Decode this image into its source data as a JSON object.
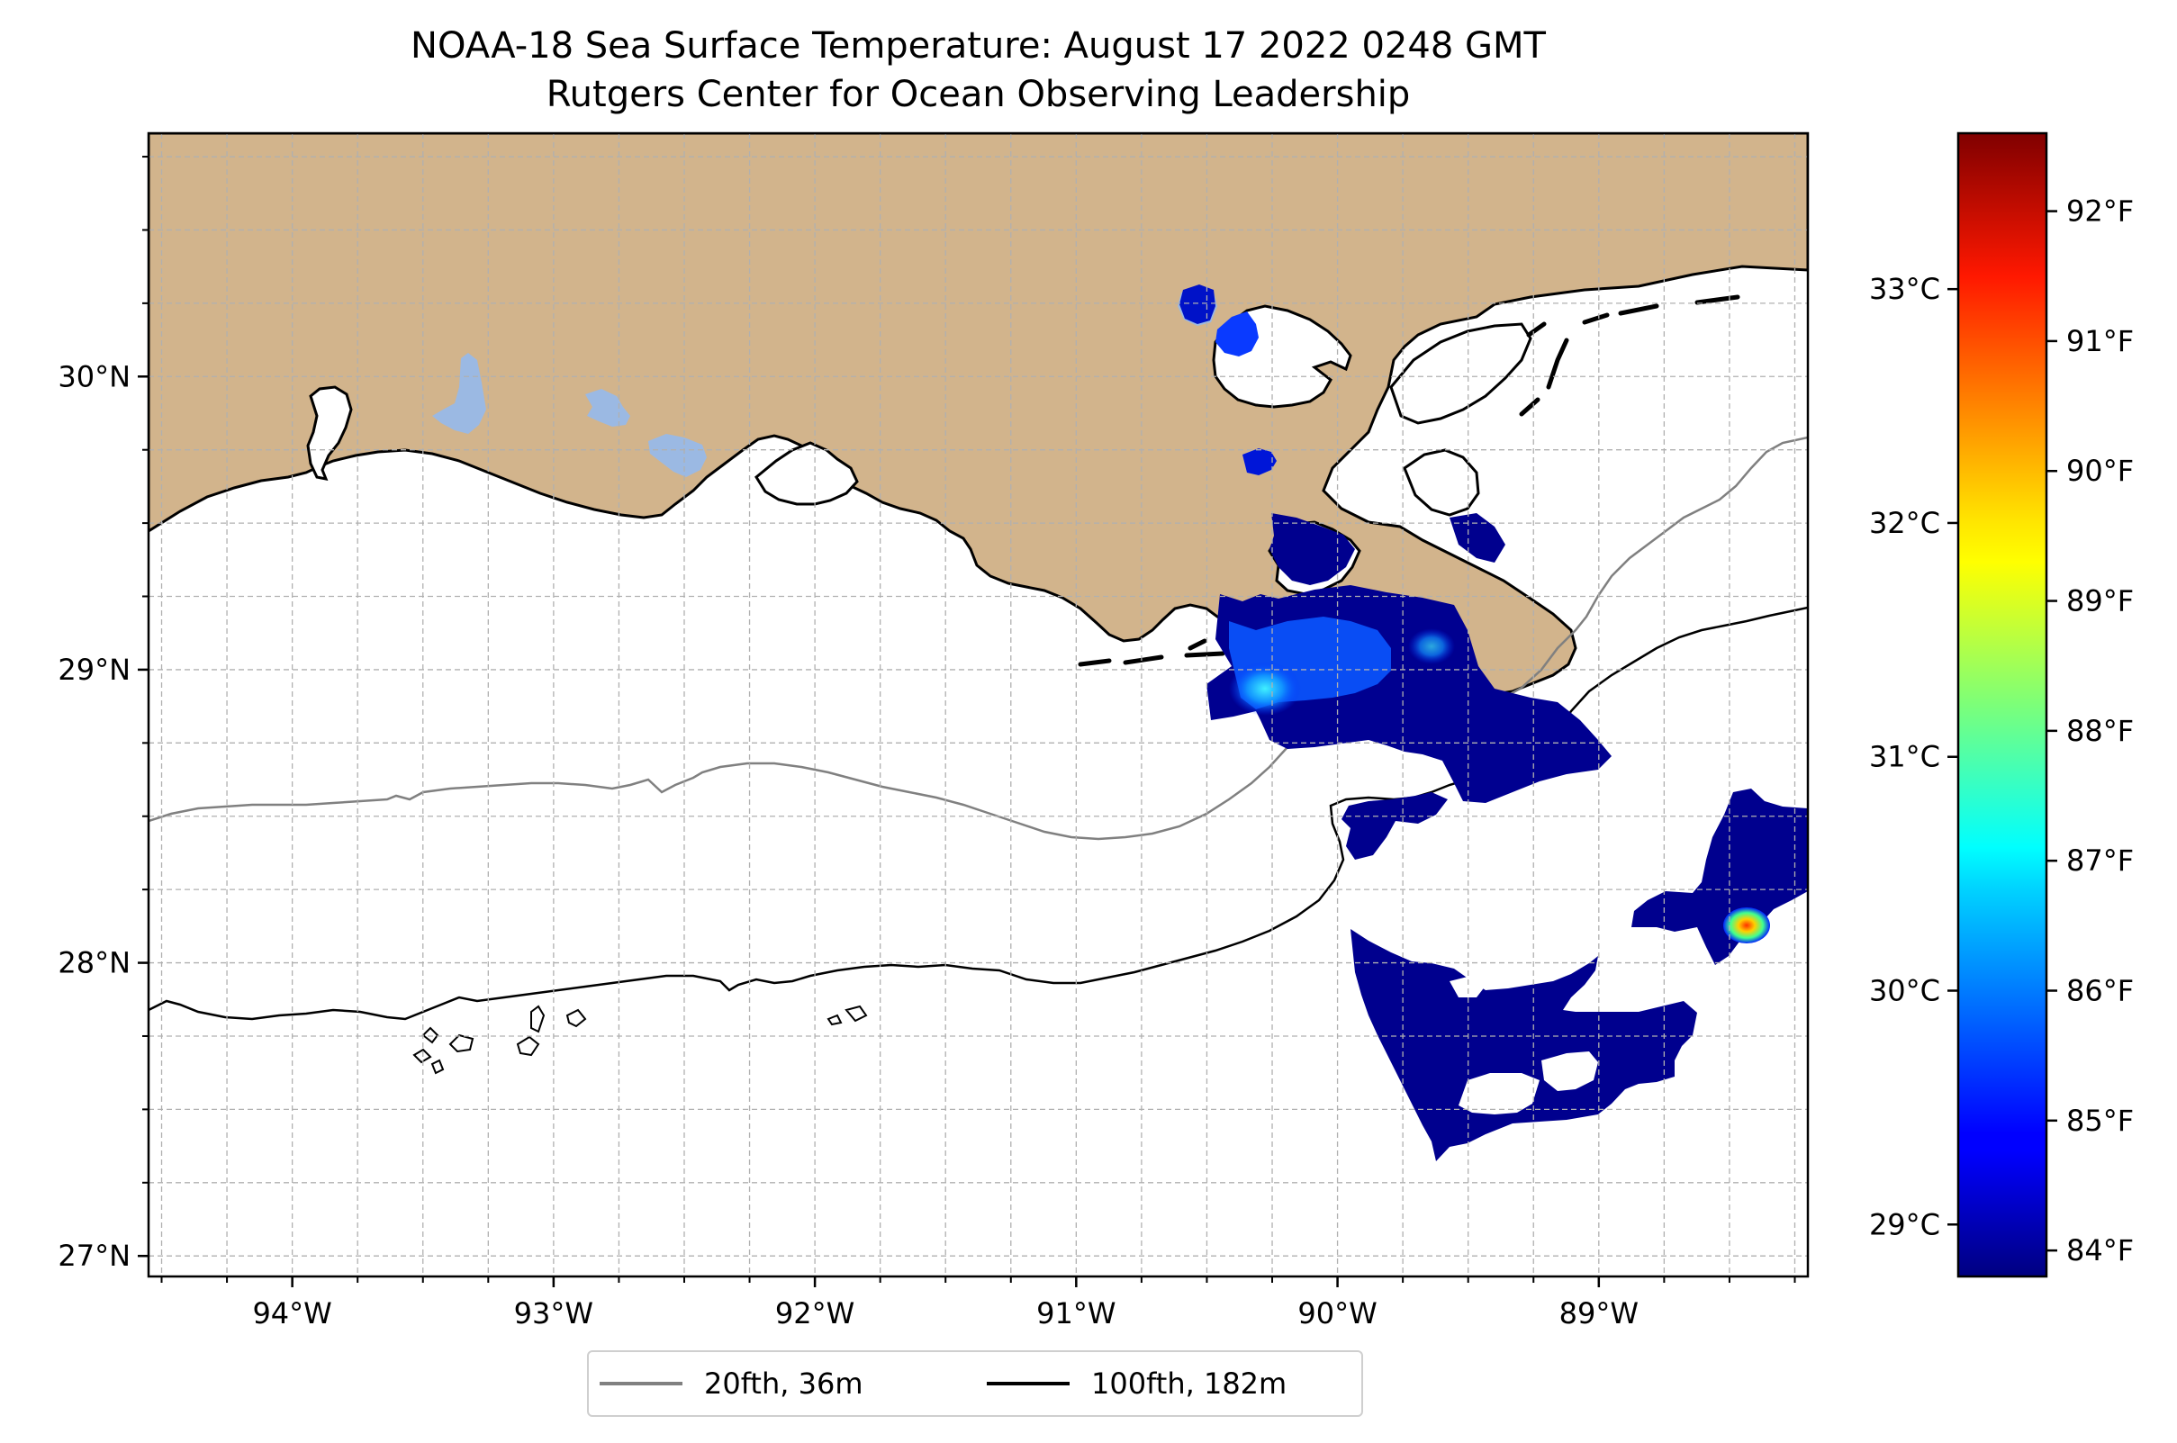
{
  "header": {
    "title_line1": "NOAA-18 Sea Surface Temperature: August 17 2022 0248 GMT",
    "title_line2": "Rutgers Center for Ocean Observing Leadership"
  },
  "map": {
    "extent": {
      "lon_min": -94.55,
      "lon_max": -88.2,
      "lat_min": 26.93,
      "lat_max": 30.83
    },
    "lon_ticks": [
      -94,
      -93,
      -92,
      -91,
      -90,
      -89
    ],
    "lon_tick_labels": [
      "94°W",
      "93°W",
      "92°W",
      "91°W",
      "90°W",
      "89°W"
    ],
    "lat_ticks": [
      27,
      28,
      29,
      30
    ],
    "lat_tick_labels": [
      "27°N",
      "28°N",
      "29°N",
      "30°N"
    ],
    "grid": true,
    "colors": {
      "land": "#d2b48c",
      "lakes": "#9bb9e3",
      "ocean": "#ffffff",
      "coastline": "#000000",
      "isobath_20fth": "#808080",
      "isobath_100fth": "#000000"
    }
  },
  "colorbar": {
    "colormap": "jet",
    "range_f": [
      83.8,
      92.6
    ],
    "fahrenheit_ticks": [
      84,
      85,
      86,
      87,
      88,
      89,
      90,
      91,
      92
    ],
    "fahrenheit_labels": [
      "84°F",
      "85°F",
      "86°F",
      "87°F",
      "88°F",
      "89°F",
      "90°F",
      "91°F",
      "92°F"
    ],
    "celsius_ticks": [
      29,
      30,
      31,
      32,
      33
    ],
    "celsius_labels": [
      "29°C",
      "30°C",
      "31°C",
      "32°C",
      "33°C"
    ]
  },
  "legend": {
    "items": [
      {
        "label": "20fth, 36m",
        "color": "#808080"
      },
      {
        "label": "100fth, 182m",
        "color": "#000000"
      }
    ]
  }
}
